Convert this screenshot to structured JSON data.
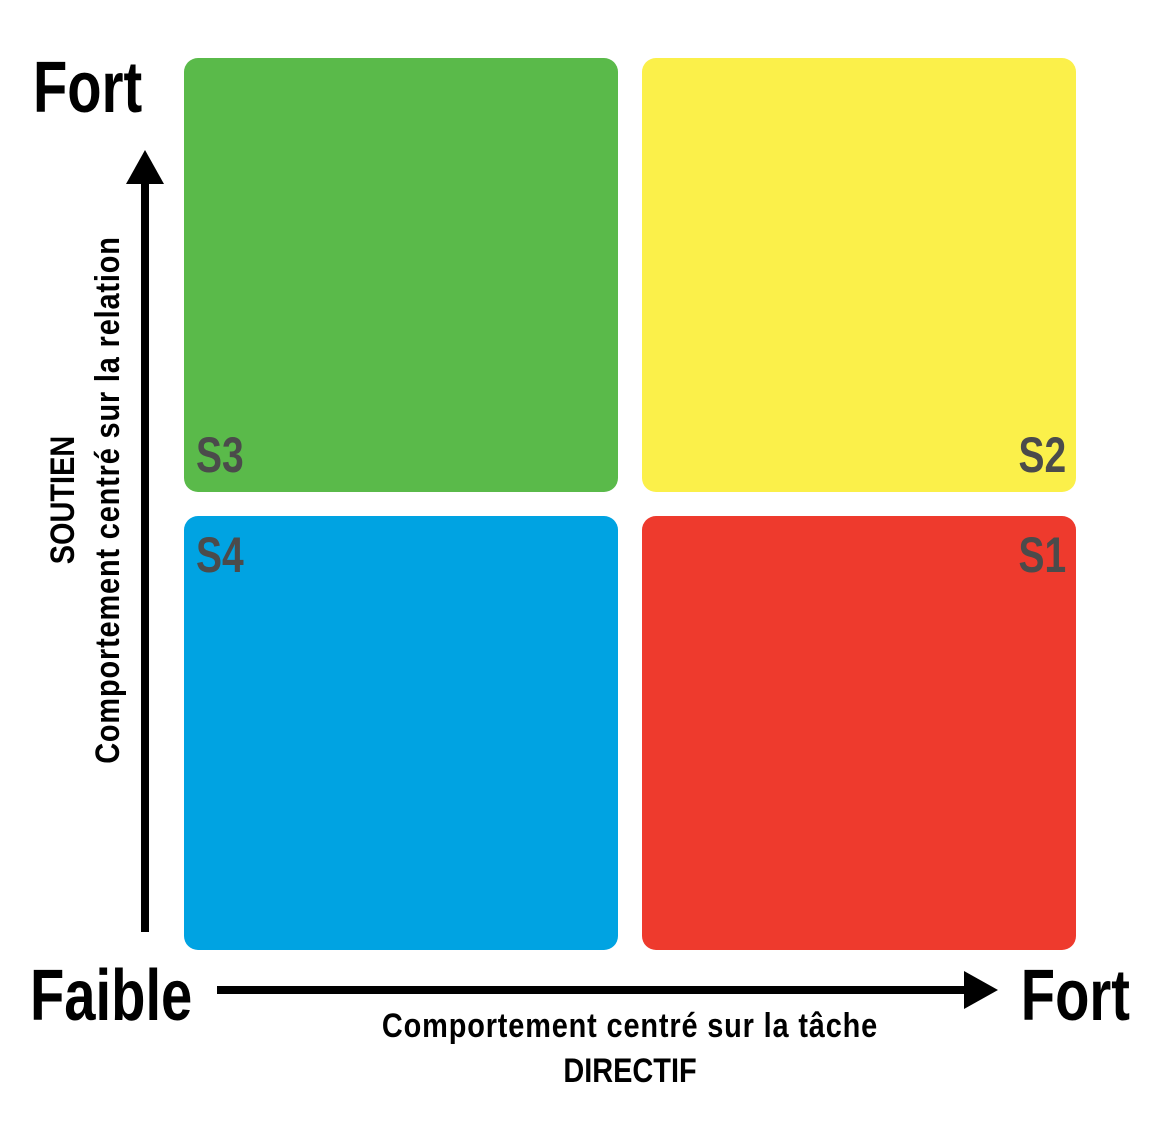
{
  "quadrants": [
    {
      "label": "S3",
      "color": "#5aba4a"
    },
    {
      "label": "S2",
      "color": "#fbf04a"
    },
    {
      "label": "S4",
      "color": "#00a3e2"
    },
    {
      "label": "S1",
      "color": "#ee3a2d"
    }
  ],
  "y_axis": {
    "high": "Fort",
    "title": "SOUTIEN",
    "subtitle": "Comportement centré sur la relation"
  },
  "x_axis": {
    "low": "Faible",
    "high": "Fort",
    "subtitle": "Comportement centré sur la tâche",
    "title": "DIRECTIF"
  },
  "label_color": "#4b4b4b"
}
